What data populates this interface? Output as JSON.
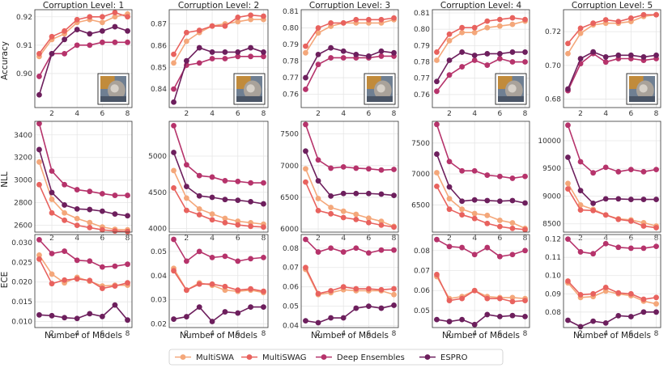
{
  "chart_data": {
    "type": "line",
    "xlabel": "Number of Models",
    "x": [
      1,
      2,
      3,
      4,
      5,
      6,
      7,
      8
    ],
    "xticks": [
      2,
      4,
      6,
      8
    ],
    "colors": {
      "MultiSWA": "#f4a77a",
      "MultiSWAG": "#e8625e",
      "Deep Ensembles": "#b6336b",
      "ESPRO": "#6d1f5d"
    },
    "legend": [
      "MultiSWA",
      "MultiSWAG",
      "Deep Ensembles",
      "ESPRO"
    ],
    "columns": [
      {
        "title": "Corruption Level: 1"
      },
      {
        "title": "Corruption Level: 2"
      },
      {
        "title": "Corruption Level: 3"
      },
      {
        "title": "Corruption Level: 4"
      },
      {
        "title": "Corruption Level: 5"
      }
    ],
    "rows": [
      {
        "ylabel": "Accuracy"
      },
      {
        "ylabel": "NLL"
      },
      {
        "ylabel": "ECE"
      }
    ],
    "panels": [
      {
        "row": 0,
        "col": 0,
        "ylim": [
          0.888,
          0.9225
        ],
        "yticks": [
          0.9,
          0.91,
          0.92
        ],
        "ytick_labels": [
          "0.90",
          "0.91",
          "0.92"
        ],
        "inset": true,
        "series": {
          "MultiSWA": [
            0.906,
            0.912,
            0.914,
            0.918,
            0.919,
            0.918,
            0.92,
            0.921
          ],
          "MultiSWAG": [
            0.907,
            0.913,
            0.915,
            0.919,
            0.92,
            0.92,
            0.9215,
            0.92
          ],
          "Deep Ensembles": [
            0.899,
            0.907,
            0.907,
            0.91,
            0.91,
            0.911,
            0.911,
            0.911
          ],
          "ESPRO": [
            0.8925,
            0.907,
            0.912,
            0.9155,
            0.914,
            0.915,
            0.9165,
            0.915
          ]
        }
      },
      {
        "row": 0,
        "col": 1,
        "ylim": [
          0.8315,
          0.8765
        ],
        "yticks": [
          0.84,
          0.85,
          0.86,
          0.87
        ],
        "ytick_labels": [
          "0.84",
          "0.85",
          "0.86",
          "0.87"
        ],
        "inset": true,
        "series": {
          "MultiSWA": [
            0.852,
            0.862,
            0.866,
            0.869,
            0.87,
            0.871,
            0.872,
            0.872
          ],
          "MultiSWAG": [
            0.856,
            0.866,
            0.867,
            0.869,
            0.869,
            0.873,
            0.874,
            0.8735
          ],
          "Deep Ensembles": [
            0.84,
            0.851,
            0.852,
            0.854,
            0.854,
            0.855,
            0.855,
            0.855
          ],
          "ESPRO": [
            0.834,
            0.853,
            0.859,
            0.857,
            0.857,
            0.857,
            0.859,
            0.857
          ]
        }
      },
      {
        "row": 0,
        "col": 2,
        "ylim": [
          0.752,
          0.811
        ],
        "yticks": [
          0.76,
          0.77,
          0.78,
          0.79,
          0.8,
          0.81
        ],
        "ytick_labels": [
          "0.76",
          "0.77",
          "0.78",
          "0.79",
          "0.80",
          "0.81"
        ],
        "inset": true,
        "series": {
          "MultiSWA": [
            0.785,
            0.797,
            0.801,
            0.803,
            0.803,
            0.803,
            0.803,
            0.805
          ],
          "MultiSWAG": [
            0.789,
            0.8,
            0.803,
            0.803,
            0.805,
            0.805,
            0.805,
            0.806
          ],
          "Deep Ensembles": [
            0.763,
            0.778,
            0.782,
            0.782,
            0.782,
            0.782,
            0.783,
            0.783
          ],
          "ESPRO": [
            0.77,
            0.784,
            0.788,
            0.786,
            0.784,
            0.783,
            0.786,
            0.785
          ]
        }
      },
      {
        "row": 0,
        "col": 3,
        "ylim": [
          0.752,
          0.812
        ],
        "yticks": [
          0.76,
          0.77,
          0.78,
          0.79,
          0.8,
          0.81
        ],
        "ytick_labels": [
          "0.76",
          "0.77",
          "0.78",
          "0.79",
          "0.80",
          "0.81"
        ],
        "inset": true,
        "series": {
          "MultiSWA": [
            0.781,
            0.793,
            0.798,
            0.798,
            0.801,
            0.802,
            0.803,
            0.805
          ],
          "MultiSWAG": [
            0.786,
            0.797,
            0.801,
            0.801,
            0.805,
            0.806,
            0.807,
            0.806
          ],
          "Deep Ensembles": [
            0.762,
            0.772,
            0.777,
            0.781,
            0.778,
            0.782,
            0.78,
            0.78
          ],
          "ESPRO": [
            0.768,
            0.781,
            0.786,
            0.784,
            0.785,
            0.785,
            0.786,
            0.786
          ]
        }
      },
      {
        "row": 0,
        "col": 4,
        "ylim": [
          0.675,
          0.733
        ],
        "yticks": [
          0.68,
          0.7,
          0.72
        ],
        "ytick_labels": [
          "0.68",
          "0.70",
          "0.72"
        ],
        "inset": true,
        "series": {
          "MultiSWA": [
            0.707,
            0.719,
            0.724,
            0.725,
            0.725,
            0.726,
            0.729,
            0.73
          ],
          "MultiSWAG": [
            0.713,
            0.722,
            0.725,
            0.727,
            0.726,
            0.728,
            0.73,
            0.73
          ],
          "Deep Ensembles": [
            0.685,
            0.701,
            0.707,
            0.702,
            0.704,
            0.704,
            0.703,
            0.704
          ],
          "ESPRO": [
            0.686,
            0.704,
            0.708,
            0.705,
            0.706,
            0.706,
            0.705,
            0.706
          ]
        }
      },
      {
        "row": 1,
        "col": 0,
        "ylim": [
          2540,
          3520
        ],
        "yticks": [
          2600,
          2800,
          3000,
          3200,
          3400
        ],
        "ytick_labels": [
          "2600",
          "2800",
          "3000",
          "3200",
          "3400"
        ],
        "inset": false,
        "series": {
          "MultiSWA": [
            3160,
            2830,
            2710,
            2660,
            2625,
            2585,
            2565,
            2560
          ],
          "MultiSWAG": [
            2960,
            2710,
            2645,
            2600,
            2580,
            2560,
            2550,
            2545
          ],
          "Deep Ensembles": [
            3500,
            3080,
            2960,
            2915,
            2900,
            2880,
            2865,
            2865
          ],
          "ESPRO": [
            3270,
            2890,
            2780,
            2745,
            2740,
            2725,
            2700,
            2685
          ]
        }
      },
      {
        "row": 1,
        "col": 1,
        "ylim": [
          3950,
          5480
        ],
        "yticks": [
          4000,
          4500,
          5000
        ],
        "ytick_labels": [
          "4000",
          "4500",
          "5000"
        ],
        "inset": false,
        "series": {
          "MultiSWA": [
            4800,
            4420,
            4270,
            4200,
            4140,
            4100,
            4080,
            4060
          ],
          "MultiSWAG": [
            4560,
            4250,
            4190,
            4120,
            4080,
            4050,
            4030,
            4020
          ],
          "Deep Ensembles": [
            5420,
            4880,
            4730,
            4710,
            4660,
            4650,
            4630,
            4630
          ],
          "ESPRO": [
            5050,
            4580,
            4450,
            4430,
            4400,
            4390,
            4370,
            4340
          ]
        }
      },
      {
        "row": 1,
        "col": 2,
        "ylim": [
          5950,
          7700
        ],
        "yticks": [
          6000,
          6500,
          7000,
          7500
        ],
        "ytick_labels": [
          "6000",
          "6500",
          "7000",
          "7500"
        ],
        "inset": false,
        "series": {
          "MultiSWA": [
            6950,
            6480,
            6340,
            6280,
            6230,
            6170,
            6120,
            6040
          ],
          "MultiSWAG": [
            6740,
            6290,
            6240,
            6180,
            6150,
            6100,
            6060,
            6030
          ],
          "Deep Ensembles": [
            7650,
            7090,
            6960,
            6980,
            6960,
            6950,
            6930,
            6940
          ],
          "ESPRO": [
            7230,
            6760,
            6520,
            6560,
            6560,
            6560,
            6550,
            6530
          ]
        }
      },
      {
        "row": 1,
        "col": 3,
        "ylim": [
          6060,
          7850
        ],
        "yticks": [
          6500,
          7000,
          7500
        ],
        "ytick_labels": [
          "6500",
          "7000",
          "7500"
        ],
        "inset": false,
        "series": {
          "MultiSWA": [
            7020,
            6600,
            6430,
            6360,
            6330,
            6250,
            6210,
            6120
          ],
          "MultiSWAG": [
            6800,
            6430,
            6340,
            6280,
            6200,
            6150,
            6120,
            6100
          ],
          "Deep Ensembles": [
            7800,
            7200,
            7050,
            7050,
            6980,
            6960,
            6930,
            6960
          ],
          "ESPRO": [
            7320,
            6790,
            6560,
            6580,
            6570,
            6560,
            6570,
            6530
          ]
        }
      },
      {
        "row": 1,
        "col": 4,
        "ylim": [
          8350,
          10350
        ],
        "yticks": [
          8500,
          9000,
          9500,
          10000
        ],
        "ytick_labels": [
          "8500",
          "9000",
          "9500",
          "10000"
        ],
        "inset": false,
        "series": {
          "MultiSWA": [
            9230,
            8840,
            8760,
            8660,
            8590,
            8570,
            8520,
            8460
          ],
          "MultiSWAG": [
            9130,
            8750,
            8740,
            8660,
            8580,
            8550,
            8460,
            8430
          ],
          "Deep Ensembles": [
            10280,
            9620,
            9420,
            9520,
            9440,
            9480,
            9440,
            9480
          ],
          "ESPRO": [
            9700,
            9100,
            8870,
            8950,
            8950,
            8940,
            8940,
            8940
          ]
        }
      },
      {
        "row": 2,
        "col": 0,
        "ylim": [
          0.0085,
          0.032
        ],
        "yticks": [
          0.01,
          0.015,
          0.02,
          0.025,
          0.03
        ],
        "ytick_labels": [
          "0.010",
          "0.015",
          "0.020",
          "0.025",
          "0.030"
        ],
        "inset": false,
        "series": {
          "MultiSWA": [
            0.0268,
            0.022,
            0.0198,
            0.0212,
            0.0202,
            0.019,
            0.0192,
            0.0192
          ],
          "MultiSWAG": [
            0.0258,
            0.0196,
            0.0205,
            0.0208,
            0.0204,
            0.0184,
            0.019,
            0.0198
          ],
          "Deep Ensembles": [
            0.0307,
            0.0272,
            0.0278,
            0.0255,
            0.0253,
            0.0238,
            0.024,
            0.0245
          ],
          "ESPRO": [
            0.0117,
            0.0115,
            0.011,
            0.0108,
            0.012,
            0.0113,
            0.0142,
            0.0104
          ]
        }
      },
      {
        "row": 2,
        "col": 1,
        "ylim": [
          0.0185,
          0.057
        ],
        "yticks": [
          0.02,
          0.03,
          0.04,
          0.05
        ],
        "ytick_labels": [
          "0.02",
          "0.03",
          "0.04",
          "0.05"
        ],
        "inset": false,
        "series": {
          "MultiSWA": [
            0.043,
            0.034,
            0.037,
            0.036,
            0.034,
            0.0335,
            0.034,
            0.033
          ],
          "MultiSWAG": [
            0.042,
            0.034,
            0.0365,
            0.0365,
            0.0355,
            0.034,
            0.0345,
            0.0335
          ],
          "Deep Ensembles": [
            0.055,
            0.046,
            0.05,
            0.0475,
            0.048,
            0.046,
            0.047,
            0.0475
          ],
          "ESPRO": [
            0.022,
            0.023,
            0.027,
            0.021,
            0.025,
            0.0245,
            0.027,
            0.027
          ]
        }
      },
      {
        "row": 2,
        "col": 2,
        "ylim": [
          0.039,
          0.087
        ],
        "yticks": [
          0.04,
          0.05,
          0.06,
          0.07,
          0.08
        ],
        "ytick_labels": [
          "0.04",
          "0.05",
          "0.06",
          "0.07",
          "0.08"
        ],
        "inset": false,
        "series": {
          "MultiSWA": [
            0.069,
            0.056,
            0.057,
            0.0585,
            0.058,
            0.058,
            0.058,
            0.056
          ],
          "MultiSWAG": [
            0.07,
            0.0565,
            0.058,
            0.06,
            0.059,
            0.059,
            0.0585,
            0.059
          ],
          "Deep Ensembles": [
            0.0845,
            0.078,
            0.08,
            0.078,
            0.08,
            0.0775,
            0.079,
            0.079
          ],
          "ESPRO": [
            0.0425,
            0.0415,
            0.044,
            0.044,
            0.049,
            0.05,
            0.049,
            0.0505
          ]
        }
      },
      {
        "row": 2,
        "col": 3,
        "ylim": [
          0.0415,
          0.088
        ],
        "yticks": [
          0.05,
          0.06,
          0.07,
          0.08
        ],
        "ytick_labels": [
          "0.05",
          "0.06",
          "0.07",
          "0.08"
        ],
        "inset": false,
        "series": {
          "MultiSWA": [
            0.067,
            0.056,
            0.057,
            0.06,
            0.057,
            0.0565,
            0.0565,
            0.056
          ],
          "MultiSWAG": [
            0.068,
            0.055,
            0.056,
            0.06,
            0.056,
            0.056,
            0.0545,
            0.055
          ],
          "Deep Ensembles": [
            0.0855,
            0.082,
            0.0815,
            0.078,
            0.0815,
            0.077,
            0.078,
            0.08
          ],
          "ESPRO": [
            0.0455,
            0.0445,
            0.0455,
            0.043,
            0.048,
            0.047,
            0.0475,
            0.047
          ]
        }
      },
      {
        "row": 2,
        "col": 4,
        "ylim": [
          0.0715,
          0.1225
        ],
        "yticks": [
          0.08,
          0.09,
          0.1,
          0.11,
          0.12
        ],
        "ytick_labels": [
          "0.08",
          "0.09",
          "0.10",
          "0.11",
          "0.12"
        ],
        "inset": false,
        "series": {
          "MultiSWA": [
            0.096,
            0.088,
            0.0885,
            0.0915,
            0.09,
            0.089,
            0.086,
            0.0845
          ],
          "MultiSWAG": [
            0.097,
            0.0895,
            0.09,
            0.0935,
            0.0905,
            0.09,
            0.087,
            0.088
          ],
          "Deep Ensembles": [
            0.12,
            0.113,
            0.112,
            0.1175,
            0.1155,
            0.115,
            0.115,
            0.116
          ],
          "ESPRO": [
            0.0755,
            0.072,
            0.075,
            0.074,
            0.078,
            0.0775,
            0.08,
            0.08
          ]
        }
      }
    ]
  }
}
